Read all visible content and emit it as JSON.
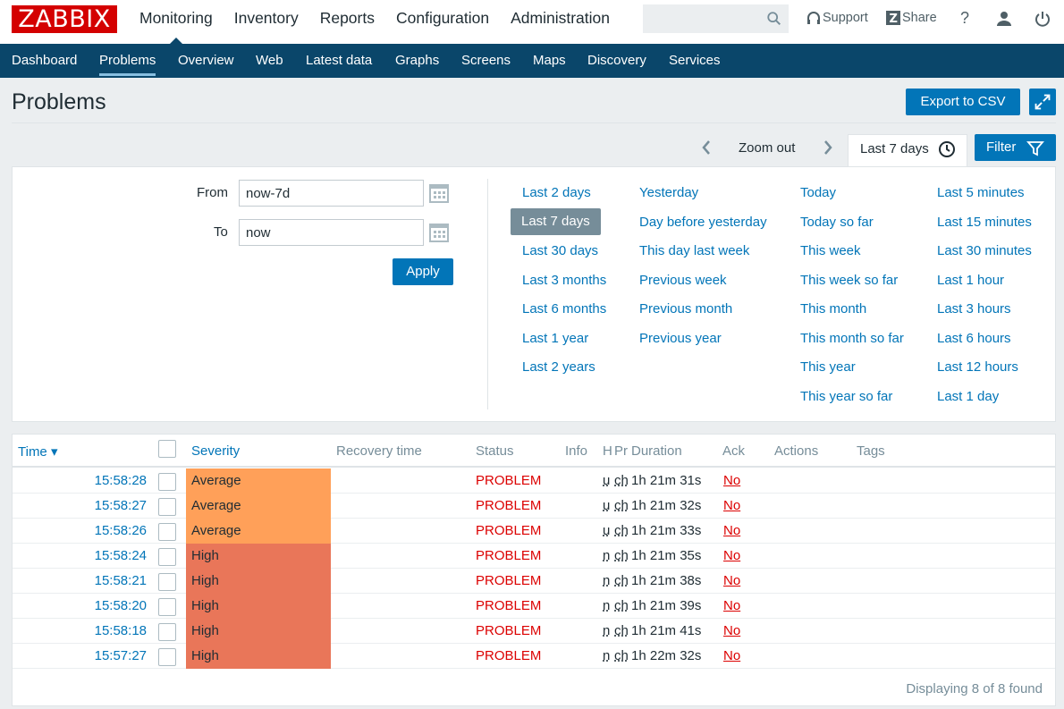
{
  "logo": "ZABBIX",
  "main_menu": [
    "Monitoring",
    "Inventory",
    "Reports",
    "Configuration",
    "Administration"
  ],
  "top_links": {
    "support": "Support",
    "share": "Share",
    "help": "?"
  },
  "sub_menu": [
    "Dashboard",
    "Problems",
    "Overview",
    "Web",
    "Latest data",
    "Graphs",
    "Screens",
    "Maps",
    "Discovery",
    "Services"
  ],
  "page": {
    "title": "Problems",
    "export_label": "Export to CSV"
  },
  "timebar": {
    "zoom_out": "Zoom out",
    "period": "Last 7 days",
    "filter_label": "Filter"
  },
  "filter": {
    "from_label": "From",
    "from_value": "now-7d",
    "to_label": "To",
    "to_value": "now",
    "apply_label": "Apply",
    "col1": [
      "Last 2 days",
      "Last 7 days",
      "Last 30 days",
      "Last 3 months",
      "Last 6 months",
      "Last 1 year",
      "Last 2 years"
    ],
    "col2": [
      "Yesterday",
      "Day before yesterday",
      "This day last week",
      "Previous week",
      "Previous month",
      "Previous year"
    ],
    "col3": [
      "Today",
      "Today so far",
      "This week",
      "This week so far",
      "This month",
      "This month so far",
      "This year",
      "This year so far"
    ],
    "col4": [
      "Last 5 minutes",
      "Last 15 minutes",
      "Last 30 minutes",
      "Last 1 hour",
      "Last 3 hours",
      "Last 6 hours",
      "Last 12 hours",
      "Last 1 day"
    ],
    "selected": "Last 7 days"
  },
  "table": {
    "headers": {
      "time": "Time ▾",
      "severity": "Severity",
      "recovery": "Recovery time",
      "status": "Status",
      "info": "Info",
      "host": "H",
      "problem": "Pr",
      "duration": "Duration",
      "ack": "Ack",
      "actions": "Actions",
      "tags": "Tags"
    },
    "rows": [
      {
        "time": "15:58:28",
        "severity": "Average",
        "sev_color": "#ffa059",
        "status": "PROBLEM",
        "h": "u",
        "p": "ch",
        "duration": "1h 21m 31s",
        "ack": "No"
      },
      {
        "time": "15:58:27",
        "severity": "Average",
        "sev_color": "#ffa059",
        "status": "PROBLEM",
        "h": "u",
        "p": "ch",
        "duration": "1h 21m 32s",
        "ack": "No"
      },
      {
        "time": "15:58:26",
        "severity": "Average",
        "sev_color": "#ffa059",
        "status": "PROBLEM",
        "h": "u",
        "p": "ch",
        "duration": "1h 21m 33s",
        "ack": "No"
      },
      {
        "time": "15:58:24",
        "severity": "High",
        "sev_color": "#e97659",
        "status": "PROBLEM",
        "h": "n",
        "p": "ch",
        "duration": "1h 21m 35s",
        "ack": "No"
      },
      {
        "time": "15:58:21",
        "severity": "High",
        "sev_color": "#e97659",
        "status": "PROBLEM",
        "h": "n",
        "p": "ch",
        "duration": "1h 21m 38s",
        "ack": "No"
      },
      {
        "time": "15:58:20",
        "severity": "High",
        "sev_color": "#e97659",
        "status": "PROBLEM",
        "h": "n",
        "p": "ch",
        "duration": "1h 21m 39s",
        "ack": "No"
      },
      {
        "time": "15:58:18",
        "severity": "High",
        "sev_color": "#e97659",
        "status": "PROBLEM",
        "h": "n",
        "p": "ch",
        "duration": "1h 21m 41s",
        "ack": "No"
      },
      {
        "time": "15:57:27",
        "severity": "High",
        "sev_color": "#e97659",
        "status": "PROBLEM",
        "h": "n",
        "p": "ch",
        "duration": "1h 22m 32s",
        "ack": "No"
      }
    ],
    "footer": "Displaying 8 of 8 found"
  }
}
